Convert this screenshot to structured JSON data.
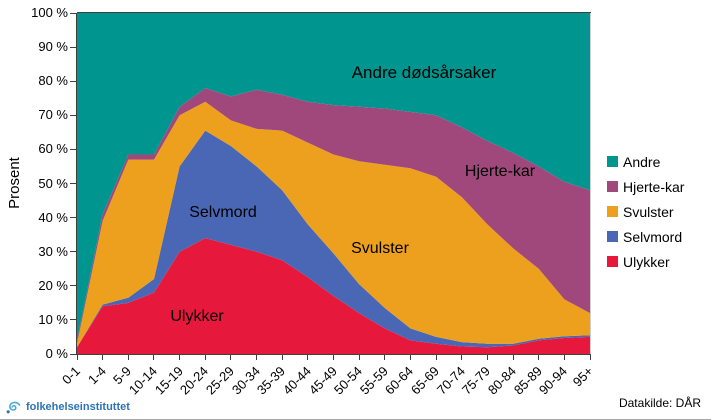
{
  "chart_data": {
    "type": "area",
    "stacked": true,
    "ylabel": "Prosent",
    "xlabel": "",
    "ylim": [
      0,
      100
    ],
    "grid": false,
    "legend_position": "right",
    "ytick_labels": [
      "0 %",
      "10 %",
      "20 %",
      "30 %",
      "40 %",
      "50 %",
      "60 %",
      "70 %",
      "80 %",
      "90 %",
      "100 %"
    ],
    "categories": [
      "0-1",
      "1-4",
      "5-9",
      "10-14",
      "15-19",
      "20-24",
      "25-29",
      "30-34",
      "35-39",
      "40-44",
      "45-49",
      "50-54",
      "55-59",
      "60-64",
      "65-69",
      "70-74",
      "75-79",
      "80-84",
      "85-89",
      "90-94",
      "95+"
    ],
    "series": [
      {
        "name": "Ulykker",
        "color": "#e6193c",
        "values": [
          2,
          14,
          15,
          18,
          30,
          34,
          32,
          30,
          27.5,
          22.5,
          17,
          12,
          7.5,
          4,
          3,
          2.2,
          2,
          2.5,
          4,
          4.7,
          5
        ]
      },
      {
        "name": "Selvmord",
        "color": "#4a67b6",
        "values": [
          0,
          0.5,
          1.5,
          4,
          25,
          31.5,
          29,
          25,
          20.5,
          15.5,
          12.5,
          8.5,
          6,
          3.5,
          2,
          1.3,
          1,
          0.5,
          0.5,
          0.5,
          0.5
        ]
      },
      {
        "name": "Svulster",
        "color": "#eda01d",
        "values": [
          1,
          24.5,
          40.5,
          35,
          15,
          8.5,
          7.5,
          11,
          17.5,
          24,
          29,
          36,
          42,
          47,
          47,
          42.5,
          35,
          28,
          20.5,
          10.8,
          6.5
        ]
      },
      {
        "name": "Hjerte-kar",
        "color": "#a0487b",
        "values": [
          1,
          2,
          1.5,
          1.5,
          2.5,
          4,
          7,
          11.5,
          10.5,
          12,
          14.5,
          16,
          16.5,
          16.5,
          18,
          20.5,
          24.5,
          28,
          30,
          34.5,
          36
        ]
      },
      {
        "name": "Andre",
        "color": "#00968f",
        "values": [
          96,
          59,
          41.5,
          41.5,
          27.5,
          22,
          24.5,
          22.5,
          24,
          26,
          27,
          27.5,
          28,
          29,
          30,
          33.5,
          37.5,
          41,
          45,
          49.5,
          52
        ]
      }
    ],
    "legend_items": [
      "Andre",
      "Hjerte-kar",
      "Svulster",
      "Selvmord",
      "Ulykker"
    ],
    "area_labels": {
      "andre": "Andre dødsårsaker",
      "hjerte": "Hjerte-kar",
      "svulster": "Svulster",
      "selvmord": "Selvmord",
      "ulykker": "Ulykker"
    }
  },
  "footer": {
    "logo_text": "folkehelseinstituttet",
    "datasource": "Datakilde: DÅR"
  }
}
